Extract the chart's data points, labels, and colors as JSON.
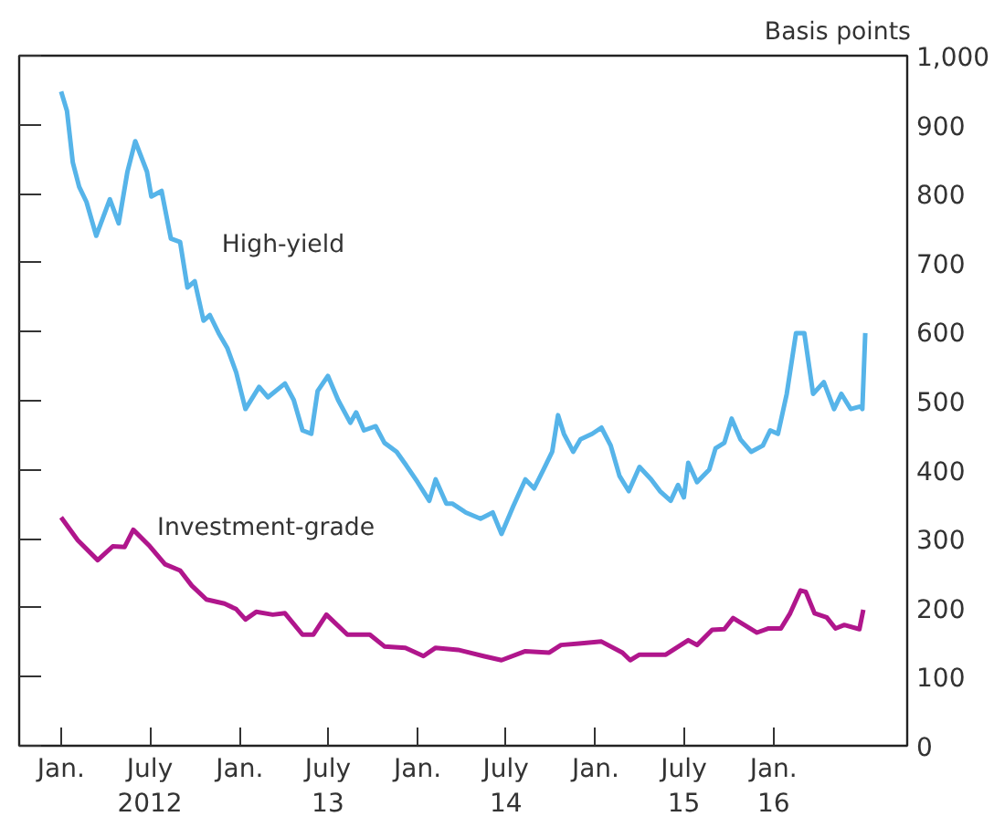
{
  "chart_data": {
    "type": "line",
    "ylabel": "Basis points",
    "xlim": [
      "2011-10-07",
      "2016-10-01"
    ],
    "ylim": [
      0,
      1000
    ],
    "yticks": [
      0,
      100,
      200,
      300,
      400,
      500,
      600,
      700,
      800,
      900,
      {
        "value": 1000,
        "label": "1,000"
      }
    ],
    "xticks": [
      {
        "value": "2012-01-01",
        "label": "Jan."
      },
      {
        "value": "2012-07-01",
        "label": "July\n2012"
      },
      {
        "value": "2013-01-01",
        "label": "Jan."
      },
      {
        "value": "2013-07-01",
        "label": "July\n13"
      },
      {
        "value": "2014-01-01",
        "label": "Jan."
      },
      {
        "value": "2014-07-01",
        "label": "July\n14"
      },
      {
        "value": "2015-01-01",
        "label": "Jan."
      },
      {
        "value": "2015-07-01",
        "label": "July\n15"
      },
      {
        "value": "2016-01-01",
        "label": "Jan.\n16"
      }
    ],
    "grid": false,
    "legend": false,
    "marker": "none",
    "line_style": "solid",
    "series": [
      {
        "name": "High-yield",
        "color": "#56b4e9",
        "x": [
          "2012-01-01",
          "2012-01-13",
          "2012-01-25",
          "2012-02-07",
          "2012-02-22",
          "2012-03-13",
          "2012-04-10",
          "2012-04-28",
          "2012-05-16",
          "2012-06-01",
          "2012-06-25",
          "2012-07-04",
          "2012-07-25",
          "2012-08-13",
          "2012-09-01",
          "2012-09-16",
          "2012-10-01",
          "2012-10-19",
          "2012-11-01",
          "2012-11-19",
          "2012-12-07",
          "2012-12-25",
          "2013-01-13",
          "2013-02-10",
          "2013-02-28",
          "2013-04-04",
          "2013-04-22",
          "2013-05-10",
          "2013-05-28",
          "2013-06-10",
          "2013-07-01",
          "2013-07-22",
          "2013-08-16",
          "2013-08-28",
          "2013-09-13",
          "2013-10-07",
          "2013-10-25",
          "2013-11-19",
          "2013-12-07",
          "2014-01-01",
          "2014-01-25",
          "2014-02-07",
          "2014-03-01",
          "2014-03-13",
          "2014-04-10",
          "2014-05-10",
          "2014-06-04",
          "2014-06-22",
          "2014-07-16",
          "2014-08-10",
          "2014-08-28",
          "2014-09-16",
          "2014-10-04",
          "2014-10-16",
          "2014-10-28",
          "2014-11-16",
          "2014-12-01",
          "2014-12-25",
          "2015-01-13",
          "2015-02-01",
          "2015-02-19",
          "2015-03-10",
          "2015-04-01",
          "2015-04-25",
          "2015-05-13",
          "2015-06-04",
          "2015-06-19",
          "2015-07-01",
          "2015-07-10",
          "2015-07-28",
          "2015-08-22",
          "2015-09-04",
          "2015-09-22",
          "2015-10-07",
          "2015-10-25",
          "2015-11-16",
          "2015-12-10",
          "2015-12-25",
          "2016-01-10",
          "2016-01-28",
          "2016-02-16",
          "2016-03-04",
          "2016-03-22",
          "2016-04-13",
          "2016-05-04",
          "2016-05-19",
          "2016-06-07",
          "2016-06-28",
          "2016-07-01",
          "2016-07-07"
        ],
        "values": [
          948,
          920,
          845,
          810,
          788,
          739,
          792,
          757,
          832,
          876,
          832,
          796,
          804,
          735,
          730,
          664,
          673,
          616,
          624,
          598,
          576,
          541,
          488,
          520,
          505,
          525,
          501,
          457,
          452,
          514,
          536,
          501,
          468,
          483,
          457,
          463,
          439,
          426,
          408,
          382,
          355,
          386,
          351,
          351,
          338,
          329,
          338,
          307,
          347,
          386,
          373,
          400,
          426,
          479,
          452,
          426,
          444,
          452,
          461,
          435,
          391,
          369,
          404,
          386,
          369,
          355,
          378,
          360,
          410,
          382,
          400,
          431,
          439,
          474,
          444,
          426,
          435,
          457,
          452,
          510,
          598,
          598,
          510,
          527,
          488,
          510,
          488,
          492,
          488,
          598
        ]
      },
      {
        "name": "Investment-grade",
        "color": "#b0168c",
        "x": [
          "2012-01-01",
          "2012-02-04",
          "2012-03-16",
          "2012-04-16",
          "2012-05-10",
          "2012-05-28",
          "2012-07-01",
          "2012-08-01",
          "2012-09-01",
          "2012-09-25",
          "2012-10-25",
          "2012-12-01",
          "2012-12-25",
          "2013-01-13",
          "2013-02-04",
          "2013-03-10",
          "2013-04-04",
          "2013-05-10",
          "2013-06-01",
          "2013-06-28",
          "2013-08-10",
          "2013-09-25",
          "2013-10-25",
          "2013-12-07",
          "2014-01-13",
          "2014-02-07",
          "2014-03-25",
          "2014-05-16",
          "2014-06-22",
          "2014-08-10",
          "2014-09-28",
          "2014-10-22",
          "2014-11-28",
          "2015-01-13",
          "2015-02-25",
          "2015-03-13",
          "2015-04-01",
          "2015-05-25",
          "2015-07-10",
          "2015-07-28",
          "2015-08-28",
          "2015-09-22",
          "2015-10-10",
          "2015-11-28",
          "2015-12-22",
          "2016-01-16",
          "2016-02-04",
          "2016-02-25",
          "2016-03-07",
          "2016-03-25",
          "2016-04-19",
          "2016-05-07",
          "2016-05-25",
          "2016-06-25",
          "2016-07-03"
        ],
        "values": [
          331,
          298,
          269,
          289,
          288,
          313,
          289,
          263,
          254,
          232,
          212,
          206,
          198,
          183,
          194,
          190,
          192,
          161,
          161,
          190,
          161,
          161,
          144,
          142,
          130,
          142,
          139,
          130,
          124,
          137,
          135,
          146,
          148,
          151,
          135,
          124,
          132,
          132,
          153,
          146,
          168,
          169,
          185,
          164,
          170,
          170,
          192,
          225,
          223,
          192,
          186,
          170,
          175,
          169,
          197
        ]
      }
    ]
  }
}
